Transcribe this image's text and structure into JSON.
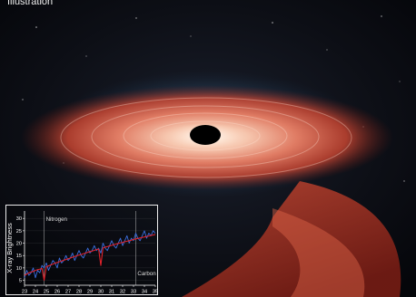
{
  "image": {
    "corner_label": "Illustration",
    "subject": "black-hole-accretion-disk-art",
    "colors": {
      "space": "#0b0b10",
      "disk_outer": "#c5432f",
      "disk_inner": "#f2b8a0",
      "corona": "#4a7fa8",
      "hole": "#000000"
    }
  },
  "chart_data": {
    "type": "line",
    "xlabel": "",
    "ylabel": "X-ray Brightness",
    "xlim": [
      23,
      35
    ],
    "ylim": [
      3,
      33
    ],
    "x_ticks": [
      "23",
      "24",
      "25",
      "26",
      "27",
      "28",
      "29",
      "30",
      "31",
      "32",
      "33",
      "34",
      "35"
    ],
    "y_ticks": [
      "5",
      "10",
      "15",
      "20",
      "25",
      "30"
    ],
    "annotations": [
      {
        "text": "Nitrogen",
        "x": 24.8,
        "y": 29
      },
      {
        "text": "Carbon",
        "x": 33.2,
        "y": 7
      }
    ],
    "markers": [
      24.8,
      33.2
    ],
    "series": [
      {
        "color": "#3b6fe0",
        "x": [
          23.0,
          23.2,
          23.4,
          23.6,
          23.8,
          24.0,
          24.2,
          24.4,
          24.6,
          24.8,
          25.0,
          25.2,
          25.4,
          25.6,
          25.8,
          26.0,
          26.2,
          26.4,
          26.6,
          26.8,
          27.0,
          27.2,
          27.4,
          27.6,
          27.8,
          28.0,
          28.2,
          28.4,
          28.6,
          28.8,
          29.0,
          29.2,
          29.4,
          29.6,
          29.8,
          30.0,
          30.2,
          30.4,
          30.6,
          30.8,
          31.0,
          31.2,
          31.4,
          31.6,
          31.8,
          32.0,
          32.2,
          32.4,
          32.6,
          32.8,
          33.0,
          33.2,
          33.4,
          33.6,
          33.8,
          34.0,
          34.2,
          34.4,
          34.6,
          34.8,
          35.0
        ],
        "y": [
          6,
          9,
          7,
          8,
          10,
          6,
          9,
          8,
          11,
          10,
          12,
          9,
          11,
          13,
          12,
          10,
          14,
          12,
          13,
          15,
          13,
          14,
          16,
          13,
          15,
          17,
          15,
          14,
          16,
          18,
          16,
          17,
          19,
          17,
          18,
          16,
          20,
          18,
          17,
          19,
          21,
          19,
          18,
          20,
          22,
          19,
          21,
          23,
          20,
          22,
          21,
          24,
          22,
          21,
          23,
          25,
          22,
          24,
          23,
          25,
          24
        ]
      },
      {
        "color": "#e0222b",
        "x": [
          23.0,
          23.2,
          23.4,
          23.6,
          23.8,
          24.0,
          24.2,
          24.4,
          24.6,
          24.8,
          25.0,
          25.2,
          25.4,
          25.6,
          25.8,
          26.0,
          26.2,
          26.4,
          26.6,
          26.8,
          27.0,
          27.2,
          27.4,
          27.6,
          27.8,
          28.0,
          28.2,
          28.4,
          28.6,
          28.8,
          29.0,
          29.2,
          29.4,
          29.6,
          29.8,
          30.0,
          30.2,
          30.4,
          30.6,
          30.8,
          31.0,
          31.2,
          31.4,
          31.6,
          31.8,
          32.0,
          32.2,
          32.4,
          32.6,
          32.8,
          33.0,
          33.2,
          33.4,
          33.6,
          33.8,
          34.0,
          34.2,
          34.4,
          34.6,
          34.8,
          35.0
        ],
        "y": [
          7,
          7.5,
          8,
          8.3,
          8.6,
          9,
          9.3,
          9.5,
          9.8,
          5,
          10.5,
          10.8,
          11.2,
          11.5,
          11.9,
          12.2,
          12.5,
          12.8,
          13.1,
          13.4,
          13.7,
          14,
          14.3,
          14.6,
          14.9,
          15.2,
          15.4,
          15.7,
          16,
          16.3,
          16.6,
          16.8,
          17.1,
          17.4,
          17.6,
          11,
          18.1,
          18.4,
          18.6,
          18.9,
          19.1,
          19.4,
          19.6,
          19.9,
          20.1,
          20.3,
          20.6,
          20.8,
          21,
          21.2,
          21.5,
          21.7,
          21.9,
          22.1,
          22.3,
          22.5,
          22.7,
          22.9,
          23.1,
          23.3,
          23.5
        ]
      }
    ]
  }
}
